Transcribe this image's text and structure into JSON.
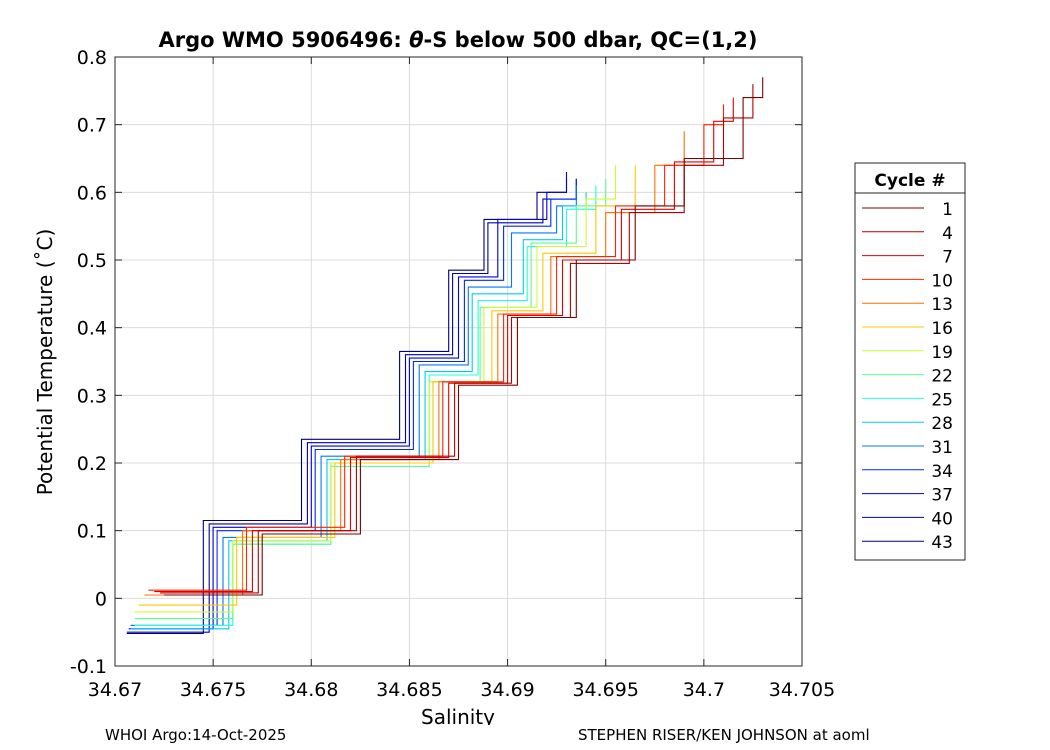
{
  "chart_data": {
    "type": "line",
    "title": "Argo WMO 5906496: θ-S below 500 dbar,  QC=(1,2)",
    "title_parts": {
      "prefix": "Argo WMO 5906496: ",
      "theta": "θ",
      "suffix": "-S below 500 dbar,  QC=(1,2)"
    },
    "xlabel": "Salinity",
    "ylabel": "Potential Temperature (˚C)",
    "xlim": [
      34.67,
      34.705
    ],
    "ylim": [
      -0.1,
      0.8
    ],
    "x_ticks": [
      34.67,
      34.675,
      34.68,
      34.685,
      34.69,
      34.695,
      34.7,
      34.705
    ],
    "x_tick_labels": [
      "34.67",
      "34.675",
      "34.68",
      "34.685",
      "34.69",
      "34.695",
      "34.7",
      "34.705"
    ],
    "y_ticks": [
      -0.1,
      0,
      0.1,
      0.2,
      0.3,
      0.4,
      0.5,
      0.6,
      0.7,
      0.8
    ],
    "y_tick_labels": [
      "-0.1",
      "0",
      "0.1",
      "0.2",
      "0.3",
      "0.4",
      "0.5",
      "0.6",
      "0.7",
      "0.8"
    ],
    "grid": true,
    "legend_position": "right",
    "legend": {
      "title": "Cycle #",
      "entries": [
        {
          "name": "1",
          "color": "#800000"
        },
        {
          "name": "4",
          "color": "#b30000"
        },
        {
          "name": "7",
          "color": "#e00000"
        },
        {
          "name": "10",
          "color": "#ff2400"
        },
        {
          "name": "13",
          "color": "#ff7000"
        },
        {
          "name": "16",
          "color": "#ffc800"
        },
        {
          "name": "19",
          "color": "#c8ff32"
        },
        {
          "name": "22",
          "color": "#5aff8c"
        },
        {
          "name": "25",
          "color": "#22ffdc"
        },
        {
          "name": "28",
          "color": "#00c8ff"
        },
        {
          "name": "31",
          "color": "#0078ff"
        },
        {
          "name": "34",
          "color": "#0028ff"
        },
        {
          "name": "37",
          "color": "#0000e0"
        },
        {
          "name": "40",
          "color": "#0000b0"
        },
        {
          "name": "43",
          "color": "#000080"
        }
      ]
    },
    "series": [
      {
        "name": "1",
        "color": "#800000",
        "s": [
          34.6725,
          34.6775,
          34.6825,
          34.6875,
          34.6905,
          34.6935,
          34.6965,
          34.699,
          34.702,
          34.703
        ],
        "t": [
          0.005,
          0.095,
          0.205,
          0.315,
          0.415,
          0.5,
          0.58,
          0.65,
          0.74,
          0.77
        ]
      },
      {
        "name": "4",
        "color": "#b30000",
        "s": [
          34.6723,
          34.6773,
          34.6823,
          34.6873,
          34.6902,
          34.6932,
          34.6962,
          34.699,
          34.701,
          34.7025
        ],
        "t": [
          0.008,
          0.1,
          0.21,
          0.318,
          0.415,
          0.495,
          0.57,
          0.64,
          0.71,
          0.76
        ]
      },
      {
        "name": "7",
        "color": "#e00000",
        "s": [
          34.672,
          34.677,
          34.682,
          34.687,
          34.69,
          34.6928,
          34.6958,
          34.6985,
          34.7005,
          34.7015
        ],
        "t": [
          0.01,
          0.1,
          0.208,
          0.318,
          0.418,
          0.5,
          0.575,
          0.645,
          0.705,
          0.74
        ]
      },
      {
        "name": "10",
        "color": "#ff2400",
        "s": [
          34.6717,
          34.6767,
          34.6817,
          34.6867,
          34.6898,
          34.6925,
          34.6955,
          34.698,
          34.7,
          34.701
        ],
        "t": [
          0.012,
          0.105,
          0.21,
          0.32,
          0.42,
          0.505,
          0.58,
          0.64,
          0.7,
          0.73
        ]
      },
      {
        "name": "13",
        "color": "#ff7000",
        "s": [
          34.6715,
          34.6765,
          34.6815,
          34.6865,
          34.6895,
          34.6922,
          34.695,
          34.6975,
          34.699
        ],
        "t": [
          0.005,
          0.1,
          0.205,
          0.32,
          0.42,
          0.505,
          0.57,
          0.64,
          0.69
        ]
      },
      {
        "name": "16",
        "color": "#ffc800",
        "s": [
          34.6712,
          34.6762,
          34.6812,
          34.6862,
          34.6892,
          34.6918,
          34.6945,
          34.6965
        ],
        "t": [
          -0.01,
          0.09,
          0.2,
          0.32,
          0.425,
          0.51,
          0.58,
          0.64
        ]
      },
      {
        "name": "19",
        "color": "#c8ff32",
        "s": [
          34.671,
          34.676,
          34.681,
          34.686,
          34.6888,
          34.6915,
          34.694,
          34.6955
        ],
        "t": [
          -0.02,
          0.085,
          0.2,
          0.32,
          0.43,
          0.52,
          0.59,
          0.64
        ]
      },
      {
        "name": "22",
        "color": "#5aff8c",
        "s": [
          34.671,
          34.676,
          34.681,
          34.686,
          34.6886,
          34.6912,
          34.6935,
          34.695
        ],
        "t": [
          -0.03,
          0.08,
          0.195,
          0.32,
          0.43,
          0.525,
          0.58,
          0.62
        ]
      },
      {
        "name": "25",
        "color": "#22ffdc",
        "s": [
          34.671,
          34.676,
          34.681,
          34.686,
          34.6885,
          34.691,
          34.693,
          34.6945
        ],
        "t": [
          -0.04,
          0.08,
          0.2,
          0.33,
          0.44,
          0.52,
          0.575,
          0.61
        ]
      },
      {
        "name": "28",
        "color": "#00c8ff",
        "s": [
          34.6708,
          34.6758,
          34.6808,
          34.6858,
          34.6882,
          34.6908,
          34.6928,
          34.694
        ],
        "t": [
          -0.045,
          0.085,
          0.205,
          0.335,
          0.45,
          0.53,
          0.58,
          0.6
        ]
      },
      {
        "name": "31",
        "color": "#0078ff",
        "s": [
          34.6708,
          34.6755,
          34.6805,
          34.6855,
          34.688,
          34.6902,
          34.6925,
          34.6935
        ],
        "t": [
          -0.04,
          0.09,
          0.21,
          0.345,
          0.46,
          0.54,
          0.58,
          0.61
        ]
      },
      {
        "name": "34",
        "color": "#0028ff",
        "s": [
          34.6708,
          34.6752,
          34.6802,
          34.6852,
          34.6878,
          34.6898,
          34.6922,
          34.6935
        ],
        "t": [
          -0.04,
          0.1,
          0.22,
          0.35,
          0.47,
          0.55,
          0.59,
          0.62
        ]
      },
      {
        "name": "37",
        "color": "#0000e0",
        "s": [
          34.6707,
          34.675,
          34.68,
          34.685,
          34.6875,
          34.6895,
          34.692,
          34.693
        ],
        "t": [
          -0.045,
          0.105,
          0.225,
          0.355,
          0.475,
          0.56,
          0.6,
          0.63
        ]
      },
      {
        "name": "40",
        "color": "#0000b0",
        "s": [
          34.6706,
          34.6748,
          34.6798,
          34.6848,
          34.6872,
          34.689,
          34.6918,
          34.6935
        ],
        "t": [
          -0.05,
          0.11,
          0.23,
          0.36,
          0.48,
          0.555,
          0.59,
          0.62
        ]
      },
      {
        "name": "43",
        "color": "#000080",
        "s": [
          34.6706,
          34.6745,
          34.6795,
          34.6845,
          34.687,
          34.6888,
          34.6915,
          34.693
        ],
        "t": [
          -0.052,
          0.115,
          0.235,
          0.365,
          0.485,
          0.56,
          0.6,
          0.62
        ]
      }
    ]
  },
  "footer": {
    "left": "WHOI Argo:14-Oct-2025",
    "right": "STEPHEN RISER/KEN JOHNSON at aoml"
  }
}
